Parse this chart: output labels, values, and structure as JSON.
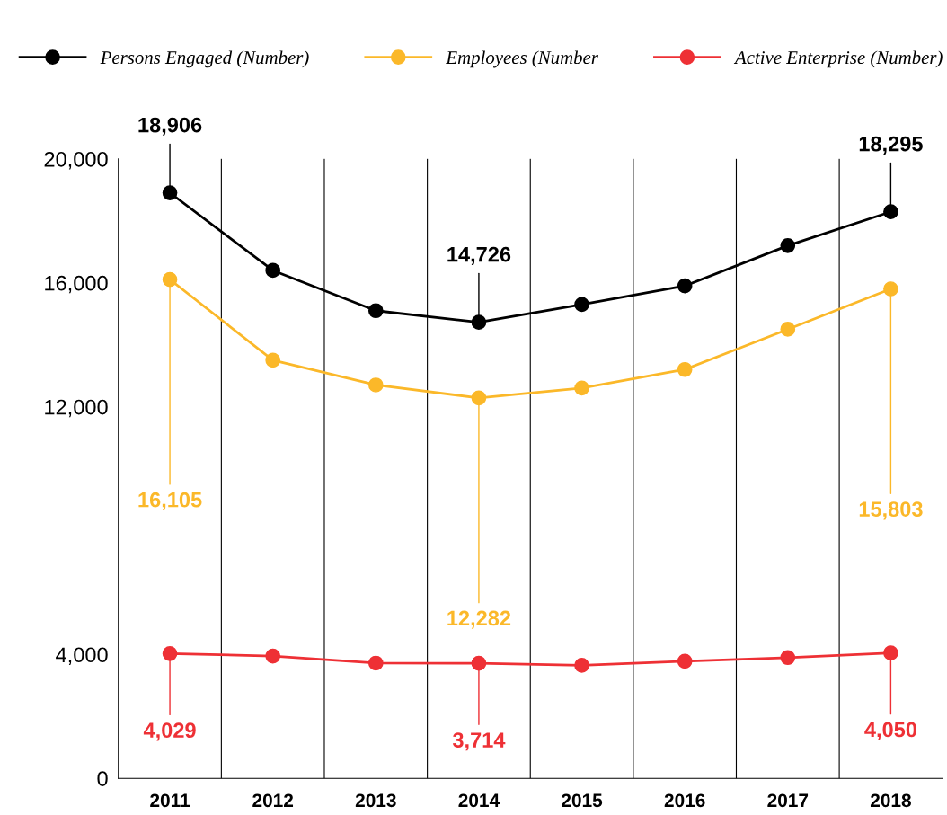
{
  "chart_data": {
    "type": "line",
    "categories": [
      "2011",
      "2012",
      "2013",
      "2014",
      "2015",
      "2016",
      "2017",
      "2018"
    ],
    "series": [
      {
        "name": "Persons Engaged (Number)",
        "color": "#000000",
        "values": [
          18906,
          16400,
          15100,
          14726,
          15300,
          15900,
          17200,
          18295
        ],
        "value_labels": [
          "18,906",
          null,
          null,
          "14,726",
          null,
          null,
          null,
          "18,295"
        ]
      },
      {
        "name": "Employees (Number",
        "color": "#fbb829",
        "values": [
          16105,
          13500,
          12700,
          12282,
          12600,
          13200,
          14500,
          15803
        ],
        "value_labels": [
          "16,105",
          null,
          null,
          "12,282",
          null,
          null,
          null,
          "15,803"
        ]
      },
      {
        "name": "Active Enterprise (Number)",
        "color": "#ee3035",
        "values": [
          4029,
          3950,
          3720,
          3714,
          3650,
          3780,
          3900,
          4050
        ],
        "value_labels": [
          "4,029",
          null,
          null,
          "3,714",
          null,
          null,
          null,
          "4,050"
        ]
      }
    ],
    "ylim": [
      0,
      20000
    ],
    "yticks": [
      {
        "value": 0,
        "label": "0"
      },
      {
        "value": 4000,
        "label": "4,000"
      },
      {
        "value": 12000,
        "label": "12,000"
      },
      {
        "value": 16000,
        "label": "16,000"
      },
      {
        "value": 20000,
        "label": "20,000"
      }
    ],
    "grid": "x",
    "legend": "top",
    "marker": "circle",
    "line_style": "solid"
  }
}
